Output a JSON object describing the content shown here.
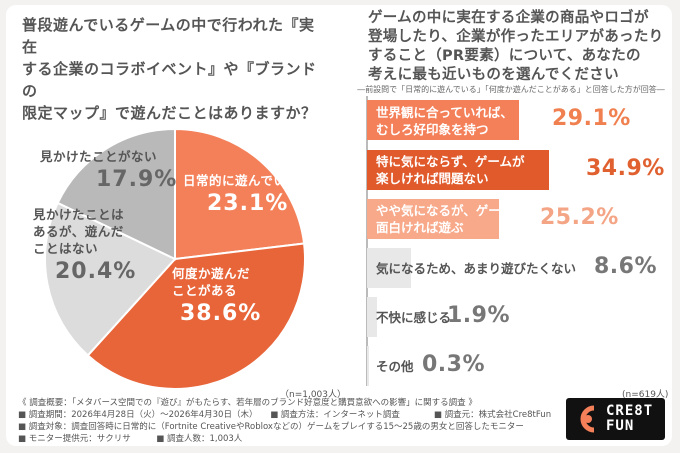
{
  "left_question": [
    "普段遊んでいるゲームの中で行われた『実在",
    "する企業のコラボイベント』や『ブランドの",
    "限定マップ』で遊んだことはありますか？"
  ],
  "right_question": [
    "ゲームの中に実在する企業の商品やロゴが",
    "登場したり、企業が作ったエリアがあったり",
    "すること（PR要素）について、あなたの",
    "考えに最も近いものを選んでください"
  ],
  "right_note": "―前設問で「日常的に遊んでいる」「何度か遊んだことがある」と回答した方が回答―",
  "n_left": "（n=1,003人）",
  "n_right": "(n=619人)",
  "colors": {
    "pie_daily": "#f4805a",
    "pie_several": "#e8653a",
    "pie_seen": "#dcdcdc",
    "pie_notseen": "#b9b9b9",
    "bar1": "#f4805a",
    "bar2": "#e05a2b",
    "bar3": "#f7a98a",
    "bar_rest": "#e8e8e8",
    "pct_orange": "#f08050",
    "pct_dark": "#e0602f",
    "pct_light": "#f4a585",
    "pct_gray": "#777777"
  },
  "chart_data": [
    {
      "type": "pie",
      "slices": [
        {
          "label": [
            "日常的に遊んでいる"
          ],
          "value": 23.1,
          "pct_text": "23.1%"
        },
        {
          "label": [
            "何度か遊んだ",
            "ことがある"
          ],
          "value": 38.6,
          "pct_text": "38.6%"
        },
        {
          "label": [
            "見かけたことは",
            "あるが、遊んだ",
            "ことはない"
          ],
          "value": 20.4,
          "pct_text": "20.4%"
        },
        {
          "label": [
            "見かけたことがない"
          ],
          "value": 17.9,
          "pct_text": "17.9%"
        }
      ]
    },
    {
      "type": "bar",
      "orientation": "horizontal",
      "bars": [
        {
          "label": [
            "世界観に合っていれば、",
            "むしろ好印象を持つ"
          ],
          "value": 29.1,
          "pct_text": "29.1%"
        },
        {
          "label": [
            "特に気にならず、ゲームが",
            "楽しければ問題ない"
          ],
          "value": 34.9,
          "pct_text": "34.9%"
        },
        {
          "label": [
            "やや気になるが、ゲームが",
            "面白ければ遊ぶ"
          ],
          "value": 25.2,
          "pct_text": "25.2%"
        },
        {
          "label": [
            "気になるため、あまり遊びたくない"
          ],
          "value": 8.6,
          "pct_text": "8.6%"
        },
        {
          "label": [
            "不快に感じる"
          ],
          "value": 1.9,
          "pct_text": "1.9%"
        },
        {
          "label": [
            "その他"
          ],
          "value": 0.3,
          "pct_text": "0.3%"
        }
      ]
    }
  ],
  "footer": [
    "《 調査概要：「メタバース空間での『遊び』がもたらす、若年層のブランド好意度と購買意欲への影響」に関する調査 》",
    "■ 調査期間：2026年4月28日（火）～2026年4月30日（木）　　■ 調査方法：インターネット調査　　　　■ 調査元：株式会社Cre8tFun",
    "■ 調査対象：調査回答時に日常的に（Fortnite CreativeやRobloxなどの）ゲームをプレイする15～25歳の男女と回答したモニター",
    "■ モニター提供元：サクリサ　　　■ 調査人数：1,003人"
  ],
  "logo": {
    "line1": "CRE8T",
    "line2": "FUN"
  }
}
